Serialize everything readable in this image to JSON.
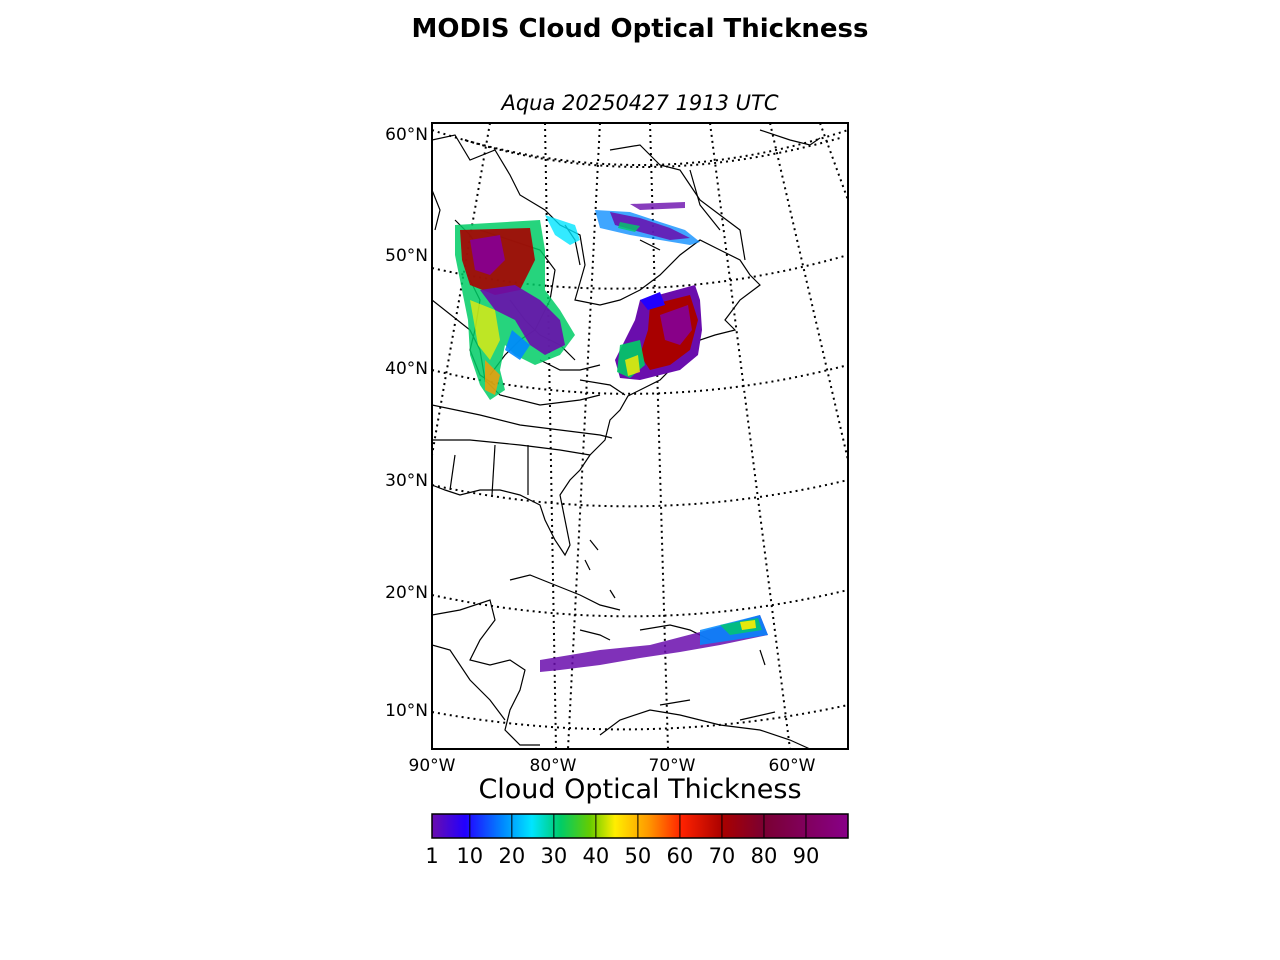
{
  "figure": {
    "title": "MODIS Cloud Optical Thickness",
    "subtitle": "Aqua 20250427 1913 UTC"
  },
  "map": {
    "projection": "conic (Lambert-style), eastern North America / western Atlantic",
    "lat_tick_labels": [
      "60°N",
      "50°N",
      "40°N",
      "30°N",
      "20°N",
      "10°N"
    ],
    "lon_tick_labels": [
      "90°W",
      "80°W",
      "70°W",
      "60°W"
    ],
    "gridlines": "dotted",
    "features": [
      "coastlines",
      "country borders",
      "state/province borders"
    ]
  },
  "colorbar": {
    "label": "Cloud Optical Thickness",
    "tick_labels": [
      "1",
      "10",
      "20",
      "30",
      "40",
      "50",
      "60",
      "70",
      "80",
      "90"
    ],
    "range": [
      1,
      100
    ],
    "colors": [
      "#6a0dad",
      "#2200ff",
      "#0088ff",
      "#00e5ff",
      "#00cc66",
      "#66cc00",
      "#ffee00",
      "#ff9900",
      "#ff2200",
      "#a80000",
      "#7a0033",
      "#880088"
    ]
  },
  "swaths": [
    {
      "region": "Great Lakes / Lake Superior",
      "dominant_values": "mixed 1–90"
    },
    {
      "region": "Northern Quebec / Labrador",
      "dominant_values": "low 1–30"
    },
    {
      "region": "New England / Maritimes",
      "dominant_values": "high 60–90"
    },
    {
      "region": "Caribbean / Puerto Rico",
      "dominant_values": "low 1–30"
    }
  ]
}
